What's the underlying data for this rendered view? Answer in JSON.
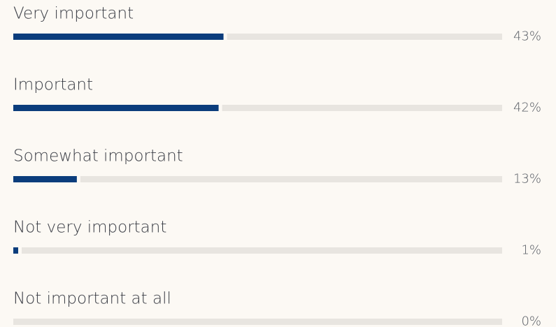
{
  "chart_data": {
    "type": "bar",
    "orientation": "horizontal",
    "categories": [
      "Very important",
      "Important",
      "Somewhat important",
      "Not very important",
      "Not important at all"
    ],
    "values": [
      43,
      42,
      13,
      1,
      0
    ],
    "value_labels": [
      "43%",
      "42%",
      "13%",
      "1%",
      "0%"
    ],
    "xlim": [
      0,
      100
    ],
    "color": "#0b3d7c",
    "track_color": "#e8e5e0"
  }
}
